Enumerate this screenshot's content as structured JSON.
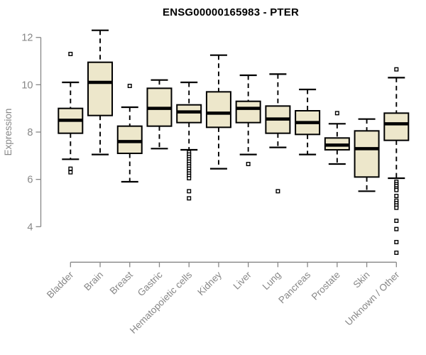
{
  "title": "ENSG00000165983 - PTER",
  "colors": {
    "background": "#ffffff",
    "box_fill": "#ede7cb",
    "box_stroke": "#000000",
    "median": "#000000",
    "whisker": "#000000",
    "outlier": "#000000",
    "axis": "#878787",
    "tick_label": "#878787",
    "axis_label": "#878787",
    "title": "#000000"
  },
  "chart_data": {
    "type": "boxplot",
    "title": "ENSG00000165983 - PTER",
    "xlabel": "",
    "ylabel": "Expression",
    "ylim": [
      4,
      12
    ],
    "yticks": [
      4,
      6,
      8,
      10,
      12
    ],
    "grid": false,
    "legend": "none",
    "categories": [
      "Bladder",
      "Brain",
      "Breast",
      "Gastric",
      "Hematopoietic cells",
      "Kidney",
      "Liver",
      "Lung",
      "Pancreas",
      "Prostate",
      "Skin",
      "Unknown / Other"
    ],
    "series": [
      {
        "name": "Bladder",
        "whisker_low": 6.85,
        "q1": 7.95,
        "median": 8.5,
        "q3": 9.0,
        "whisker_high": 10.1,
        "outliers": [
          11.3,
          6.45,
          6.3
        ]
      },
      {
        "name": "Brain",
        "whisker_low": 7.05,
        "q1": 8.7,
        "median": 10.1,
        "q3": 10.95,
        "whisker_high": 12.3,
        "outliers": []
      },
      {
        "name": "Breast",
        "whisker_low": 5.9,
        "q1": 7.1,
        "median": 7.6,
        "q3": 8.25,
        "whisker_high": 9.05,
        "outliers": [
          9.95
        ]
      },
      {
        "name": "Gastric",
        "whisker_low": 7.3,
        "q1": 8.25,
        "median": 9.0,
        "q3": 9.85,
        "whisker_high": 10.2,
        "outliers": []
      },
      {
        "name": "Hematopoietic cells",
        "whisker_low": 7.25,
        "q1": 8.4,
        "median": 8.85,
        "q3": 9.15,
        "whisker_high": 10.1,
        "outliers": [
          7.15,
          7.05,
          6.95,
          6.85,
          6.75,
          6.65,
          6.55,
          6.45,
          6.35,
          6.25,
          6.15,
          6.05,
          5.5,
          5.2
        ]
      },
      {
        "name": "Kidney",
        "whisker_low": 6.45,
        "q1": 8.2,
        "median": 8.8,
        "q3": 9.7,
        "whisker_high": 11.25,
        "outliers": []
      },
      {
        "name": "Liver",
        "whisker_low": 7.05,
        "q1": 8.4,
        "median": 9.0,
        "q3": 9.3,
        "whisker_high": 10.4,
        "outliers": [
          6.65
        ]
      },
      {
        "name": "Lung",
        "whisker_low": 7.35,
        "q1": 7.95,
        "median": 8.55,
        "q3": 9.1,
        "whisker_high": 10.45,
        "outliers": [
          5.5
        ]
      },
      {
        "name": "Pancreas",
        "whisker_low": 7.05,
        "q1": 7.9,
        "median": 8.4,
        "q3": 8.9,
        "whisker_high": 9.8,
        "outliers": []
      },
      {
        "name": "Prostate",
        "whisker_low": 6.65,
        "q1": 7.25,
        "median": 7.45,
        "q3": 7.75,
        "whisker_high": 8.35,
        "outliers": [
          8.8
        ]
      },
      {
        "name": "Skin",
        "whisker_low": 5.5,
        "q1": 6.1,
        "median": 7.3,
        "q3": 8.05,
        "whisker_high": 8.55,
        "outliers": []
      },
      {
        "name": "Unknown / Other",
        "whisker_low": 6.05,
        "q1": 7.65,
        "median": 8.35,
        "q3": 8.8,
        "whisker_high": 10.3,
        "outliers": [
          10.65,
          5.9,
          5.8,
          5.72,
          5.62,
          5.55,
          5.3,
          5.1,
          5.0,
          4.9,
          4.8,
          4.25,
          3.9,
          3.35,
          2.9
        ]
      }
    ]
  }
}
